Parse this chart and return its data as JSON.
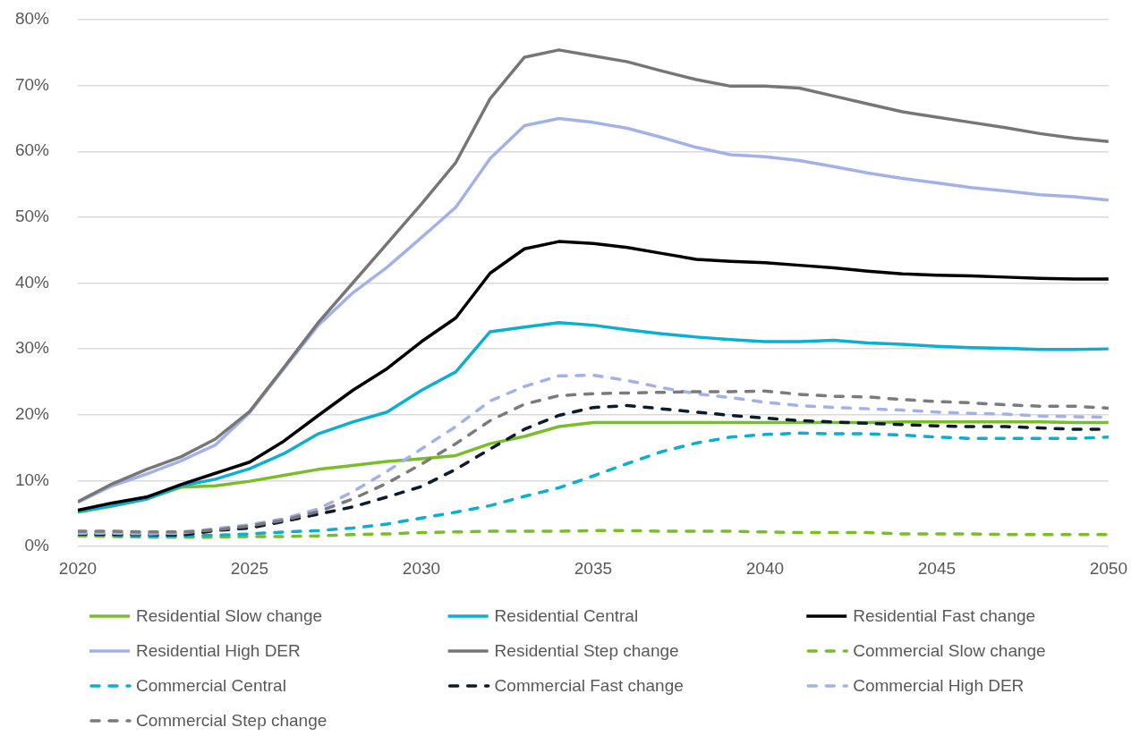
{
  "chart_data": {
    "type": "line",
    "x": [
      2020,
      2021,
      2022,
      2023,
      2024,
      2025,
      2026,
      2027,
      2028,
      2029,
      2030,
      2031,
      2032,
      2033,
      2034,
      2035,
      2036,
      2037,
      2038,
      2039,
      2040,
      2041,
      2042,
      2043,
      2044,
      2045,
      2046,
      2047,
      2048,
      2049,
      2050
    ],
    "xlim": [
      2020,
      2050
    ],
    "xticks": [
      2020,
      2025,
      2030,
      2035,
      2040,
      2045,
      2050
    ],
    "ylim": [
      0,
      80
    ],
    "yticks": [
      {
        "value": 0,
        "label": "0%"
      },
      {
        "value": 10,
        "label": "10%"
      },
      {
        "value": 20,
        "label": "20%"
      },
      {
        "value": 30,
        "label": "30%"
      },
      {
        "value": 40,
        "label": "40%"
      },
      {
        "value": 50,
        "label": "50%"
      },
      {
        "value": 60,
        "label": "60%"
      },
      {
        "value": 70,
        "label": "70%"
      },
      {
        "value": 80,
        "label": "80%"
      }
    ],
    "grid": "y",
    "legend": "bottom",
    "marker": "none",
    "series": [
      {
        "name": "Residential Slow change",
        "color": "#7abd2b",
        "line_style": "solid",
        "values": [
          5.2,
          6.1,
          7.2,
          9.0,
          9.2,
          9.9,
          10.8,
          11.7,
          12.3,
          12.9,
          13.3,
          13.8,
          15.6,
          16.7,
          18.2,
          18.8,
          18.8,
          18.8,
          18.8,
          18.8,
          18.8,
          18.8,
          18.8,
          18.8,
          18.9,
          18.9,
          18.9,
          18.9,
          18.9,
          18.8,
          18.8
        ]
      },
      {
        "name": "Residential Central",
        "color": "#0aafd2",
        "line_style": "solid",
        "values": [
          5.3,
          6.2,
          7.2,
          9.2,
          10.2,
          11.8,
          14.1,
          17.1,
          18.9,
          20.4,
          23.7,
          26.5,
          32.6,
          33.3,
          34.0,
          33.6,
          32.9,
          32.3,
          31.8,
          31.4,
          31.1,
          31.1,
          31.3,
          30.9,
          30.7,
          30.4,
          30.2,
          30.1,
          29.9,
          29.9,
          30.0
        ]
      },
      {
        "name": "Residential Fast change",
        "color": "#000000",
        "line_style": "solid",
        "values": [
          5.5,
          6.6,
          7.5,
          9.4,
          11.1,
          12.8,
          16.0,
          19.9,
          23.7,
          27.0,
          31.1,
          34.7,
          41.5,
          45.2,
          46.3,
          46.0,
          45.4,
          44.5,
          43.6,
          43.3,
          43.1,
          42.7,
          42.3,
          41.8,
          41.4,
          41.2,
          41.1,
          40.9,
          40.7,
          40.6,
          40.6
        ]
      },
      {
        "name": "Residential High DER",
        "color": "#a2b1e8",
        "line_style": "solid",
        "values": [
          6.7,
          9.2,
          11.0,
          13.0,
          15.4,
          20.3,
          27.0,
          33.6,
          38.5,
          42.4,
          46.9,
          51.5,
          58.9,
          63.9,
          65.0,
          64.4,
          63.5,
          62.1,
          60.6,
          59.5,
          59.2,
          58.6,
          57.7,
          56.7,
          55.9,
          55.2,
          54.5,
          54.0,
          53.4,
          53.1,
          52.6
        ]
      },
      {
        "name": "Residential Step change",
        "color": "#767676",
        "line_style": "solid",
        "values": [
          6.8,
          9.5,
          11.7,
          13.6,
          16.3,
          20.5,
          27.2,
          34.0,
          40.0,
          46.0,
          52.0,
          58.3,
          68.0,
          74.3,
          75.4,
          74.5,
          73.6,
          72.2,
          70.9,
          69.9,
          69.9,
          69.6,
          68.4,
          67.2,
          66.0,
          65.2,
          64.4,
          63.6,
          62.7,
          62.0,
          61.5
        ]
      },
      {
        "name": "Commercial Slow change",
        "color": "#7abd2b",
        "line_style": "dashed",
        "values": [
          1.6,
          1.5,
          1.4,
          1.4,
          1.4,
          1.5,
          1.5,
          1.6,
          1.8,
          1.9,
          2.1,
          2.2,
          2.3,
          2.3,
          2.3,
          2.4,
          2.4,
          2.3,
          2.3,
          2.3,
          2.2,
          2.1,
          2.1,
          2.1,
          1.9,
          1.9,
          1.9,
          1.8,
          1.8,
          1.8,
          1.8
        ]
      },
      {
        "name": "Commercial Central",
        "color": "#0aafd2",
        "line_style": "dashed",
        "values": [
          1.8,
          1.7,
          1.6,
          1.6,
          1.7,
          1.9,
          2.2,
          2.4,
          2.8,
          3.4,
          4.3,
          5.2,
          6.2,
          7.6,
          8.9,
          10.7,
          12.6,
          14.4,
          15.7,
          16.6,
          17.0,
          17.2,
          17.1,
          17.1,
          16.9,
          16.6,
          16.4,
          16.4,
          16.4,
          16.4,
          16.6
        ]
      },
      {
        "name": "Commercial Fast change",
        "color": "#0c1c2c",
        "line_style": "dashed",
        "values": [
          1.9,
          1.8,
          1.8,
          1.7,
          2.4,
          2.8,
          3.8,
          4.9,
          6.0,
          7.5,
          9.1,
          11.7,
          14.8,
          17.8,
          19.9,
          21.1,
          21.4,
          20.9,
          20.4,
          19.9,
          19.5,
          19.1,
          18.9,
          18.7,
          18.5,
          18.3,
          18.2,
          18.2,
          18.0,
          17.8,
          17.8
        ]
      },
      {
        "name": "Commercial High DER",
        "color": "#a2b1e8",
        "line_style": "dashed",
        "values": [
          2.0,
          2.0,
          1.9,
          2.0,
          2.7,
          3.3,
          4.2,
          5.7,
          8.3,
          11.4,
          14.8,
          18.2,
          22.1,
          24.3,
          25.9,
          26.0,
          25.2,
          24.1,
          23.2,
          22.6,
          21.9,
          21.4,
          21.1,
          20.9,
          20.7,
          20.4,
          20.2,
          20.1,
          19.8,
          19.7,
          19.6
        ]
      },
      {
        "name": "Commercial Step change",
        "color": "#7b7b7b",
        "line_style": "dashed",
        "values": [
          2.3,
          2.3,
          2.2,
          2.2,
          2.5,
          3.1,
          4.0,
          5.3,
          7.2,
          9.6,
          12.5,
          15.6,
          19.1,
          21.6,
          22.9,
          23.2,
          23.3,
          23.4,
          23.5,
          23.5,
          23.6,
          23.1,
          22.8,
          22.7,
          22.3,
          22.0,
          21.8,
          21.5,
          21.3,
          21.3,
          21.0
        ]
      }
    ]
  }
}
